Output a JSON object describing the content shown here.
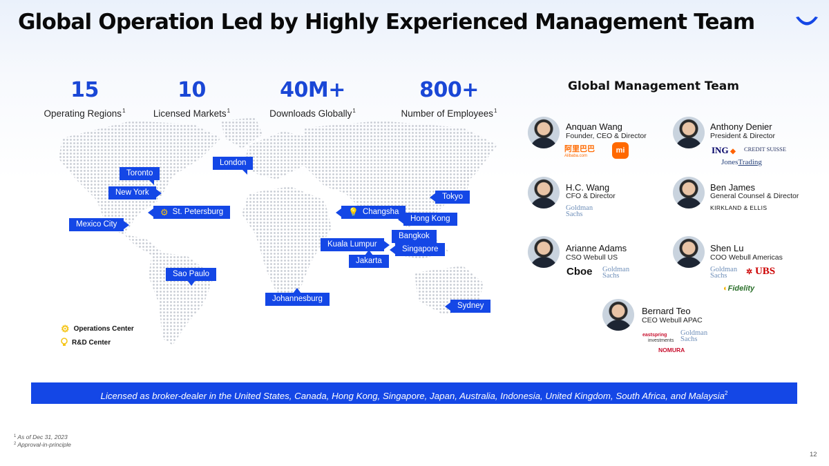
{
  "slide": {
    "title": "Global Operation Led by Highly Experienced Management Team",
    "page_number": "12"
  },
  "stats": [
    {
      "value": "15",
      "label": "Operating Regions",
      "footnote": "1"
    },
    {
      "value": "10",
      "label": "Licensed Markets",
      "footnote": "1"
    },
    {
      "value": "40M+",
      "label": "Downloads Globally",
      "footnote": "1"
    },
    {
      "value": "800+",
      "label": "Number of Employees",
      "footnote": "1"
    }
  ],
  "map": {
    "cities": [
      {
        "name": "London",
        "type": ""
      },
      {
        "name": "Toronto",
        "type": ""
      },
      {
        "name": "New York",
        "type": ""
      },
      {
        "name": "Tokyo",
        "type": ""
      },
      {
        "name": "St. Petersburg",
        "type": "operations"
      },
      {
        "name": "Changsha",
        "type": "rnd"
      },
      {
        "name": "Hong Kong",
        "type": ""
      },
      {
        "name": "Mexico City",
        "type": ""
      },
      {
        "name": "Bangkok",
        "type": ""
      },
      {
        "name": "Kuala Lumpur",
        "type": ""
      },
      {
        "name": "Singapore",
        "type": ""
      },
      {
        "name": "Jakarta",
        "type": ""
      },
      {
        "name": "Sao Paulo",
        "type": ""
      },
      {
        "name": "Johannesburg",
        "type": ""
      },
      {
        "name": "Sydney",
        "type": ""
      }
    ],
    "legend": {
      "operations": "Operations Center",
      "rnd": "R&D Center"
    }
  },
  "management": {
    "title": "Global Management Team",
    "executives": [
      {
        "name": "Anquan Wang",
        "role": "Founder, CEO & Director"
      },
      {
        "name": "Anthony Denier",
        "role": "President & Director"
      },
      {
        "name": "H.C. Wang",
        "role": "CFO & Director"
      },
      {
        "name": "Ben James",
        "role": "General Counsel & Director"
      },
      {
        "name": "Arianne Adams",
        "role": "CSO Webull US"
      },
      {
        "name": "Shen Lu",
        "role": "COO Webull Americas"
      },
      {
        "name": "Bernard Teo",
        "role": "CEO Webull APAC"
      }
    ],
    "brands": {
      "alibaba": "阿里巴巴",
      "alibaba_sub": "Alibaba.com",
      "xiaomi": "mi",
      "ing": "ING",
      "credit_suisse": "CREDIT SUISSE",
      "jones_a": "Jones",
      "jones_b": "Trading",
      "goldman_a": "Goldman",
      "goldman_b": "Sachs",
      "kirkland": "KIRKLAND & ELLIS",
      "cboe": "Cboe",
      "ubs": "UBS",
      "fidelity": "Fidelity",
      "eastspring_a": "eastspring",
      "eastspring_b": "investments",
      "nomura": "NOMURA"
    }
  },
  "banner": {
    "text": "Licensed as broker-dealer in the United States, Canada, Hong Kong, Singapore, Japan, Australia, Indonesia, United Kingdom, South Africa, and Malaysia",
    "footnote": "2"
  },
  "footnotes": [
    {
      "marker": "1",
      "text": "As of Dec 31, 2023"
    },
    {
      "marker": "2",
      "text": "Approval-in-principle"
    }
  ],
  "colors": {
    "accent": "#1447e6",
    "stat_value": "#1a47d6",
    "map_dots": "#c7cbd3",
    "goldman": "#6f8fb9"
  }
}
